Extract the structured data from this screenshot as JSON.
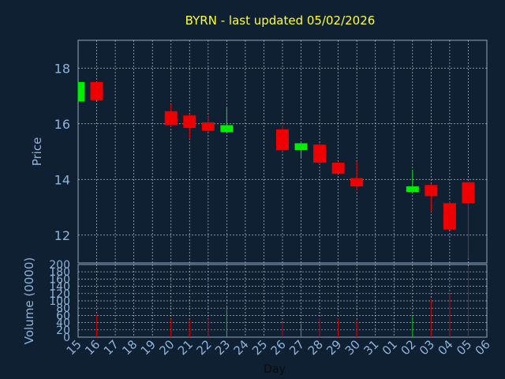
{
  "colors": {
    "background": "#0f2033",
    "title": "#ffff33",
    "axis_text": "#8fb3d9",
    "grid": "#cfd8e3",
    "frame": "#8fa6bf",
    "up": "#00ee00",
    "down": "#ee0000",
    "volume_up": "#00cc00",
    "volume_down": "#cc0000"
  },
  "chart_data": [
    {
      "type": "candlestick",
      "title": "BYRN - last updated 05/02/2026",
      "ylabel": "Price",
      "ylim": [
        11,
        19
      ],
      "yticks": [
        12,
        14,
        16,
        18
      ],
      "grid": true,
      "x": [
        "15",
        "16",
        "17",
        "18",
        "19",
        "20",
        "21",
        "22",
        "23",
        "24",
        "25",
        "26",
        "27",
        "28",
        "29",
        "30",
        "31",
        "01",
        "02",
        "03",
        "04",
        "05",
        "06"
      ],
      "candles": [
        {
          "day": "15",
          "open": 16.8,
          "high": 17.5,
          "low": 16.8,
          "close": 17.5
        },
        {
          "day": "16",
          "open": 17.5,
          "high": 17.5,
          "low": 16.85,
          "close": 16.85
        },
        {
          "day": "20",
          "open": 16.45,
          "high": 16.7,
          "low": 15.9,
          "close": 15.95
        },
        {
          "day": "21",
          "open": 16.3,
          "high": 16.35,
          "low": 15.45,
          "close": 15.85
        },
        {
          "day": "22",
          "open": 16.05,
          "high": 16.3,
          "low": 15.7,
          "close": 15.75
        },
        {
          "day": "23",
          "open": 15.7,
          "high": 16.6,
          "low": 15.7,
          "close": 15.95
        },
        {
          "day": "26",
          "open": 15.8,
          "high": 15.95,
          "low": 15.0,
          "close": 15.05
        },
        {
          "day": "27",
          "open": 15.05,
          "high": 15.3,
          "low": 14.8,
          "close": 15.3
        },
        {
          "day": "28",
          "open": 15.25,
          "high": 15.3,
          "low": 14.55,
          "close": 14.6
        },
        {
          "day": "29",
          "open": 14.6,
          "high": 14.65,
          "low": 14.2,
          "close": 14.2
        },
        {
          "day": "30",
          "open": 14.05,
          "high": 14.65,
          "low": 13.6,
          "close": 13.75
        },
        {
          "day": "02",
          "open": 13.55,
          "high": 14.35,
          "low": 13.5,
          "close": 13.75
        },
        {
          "day": "03",
          "open": 13.8,
          "high": 13.85,
          "low": 12.85,
          "close": 13.4
        },
        {
          "day": "04",
          "open": 13.15,
          "high": 13.2,
          "low": 12.2,
          "close": 12.2
        },
        {
          "day": "05",
          "open": 13.9,
          "high": 13.9,
          "low": 11.15,
          "close": 13.15
        }
      ]
    },
    {
      "type": "bar",
      "ylabel": "Volume (0000)",
      "xlabel": "Day",
      "ylim": [
        0,
        200
      ],
      "yticks": [
        0,
        20,
        40,
        60,
        80,
        100,
        120,
        140,
        160,
        180,
        200
      ],
      "categories": [
        "15",
        "16",
        "17",
        "18",
        "19",
        "20",
        "21",
        "22",
        "23",
        "24",
        "25",
        "26",
        "27",
        "28",
        "29",
        "30",
        "31",
        "01",
        "02",
        "03",
        "04",
        "05",
        "06"
      ],
      "bars": [
        {
          "day": "16",
          "value": 62,
          "dir": "down"
        },
        {
          "day": "20",
          "value": 50,
          "dir": "down"
        },
        {
          "day": "21",
          "value": 48,
          "dir": "down"
        },
        {
          "day": "22",
          "value": 50,
          "dir": "down"
        },
        {
          "day": "23",
          "value": 82,
          "dir": "up"
        },
        {
          "day": "26",
          "value": 40,
          "dir": "down"
        },
        {
          "day": "27",
          "value": 38,
          "dir": "up"
        },
        {
          "day": "28",
          "value": 52,
          "dir": "down"
        },
        {
          "day": "29",
          "value": 52,
          "dir": "down"
        },
        {
          "day": "30",
          "value": 46,
          "dir": "down"
        },
        {
          "day": "02",
          "value": 56,
          "dir": "up"
        },
        {
          "day": "03",
          "value": 105,
          "dir": "down"
        },
        {
          "day": "04",
          "value": 120,
          "dir": "down"
        },
        {
          "day": "05",
          "value": 195,
          "dir": "down"
        }
      ]
    }
  ]
}
